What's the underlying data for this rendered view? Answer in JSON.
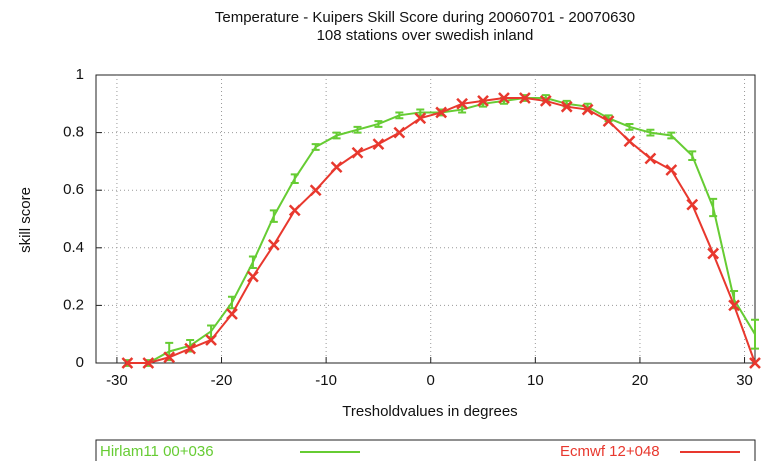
{
  "chart_data": {
    "type": "line",
    "title": "Temperature - Kuipers Skill Score during 20060701 - 20070630",
    "subtitle": "108 stations over swedish inland",
    "x_label": "Tresholdvalues in degrees",
    "y_label": "skill score",
    "x": [
      -29,
      -27,
      -25,
      -23,
      -21,
      -19,
      -17,
      -15,
      -13,
      -11,
      -9,
      -7,
      -5,
      -3,
      -1,
      1,
      3,
      5,
      7,
      9,
      11,
      13,
      15,
      17,
      19,
      21,
      23,
      25,
      27,
      29,
      31
    ],
    "series": [
      {
        "name": "Hirlam11 00+036",
        "color": "#66cc33",
        "values": [
          0,
          0,
          0.04,
          0.06,
          0.11,
          0.21,
          0.35,
          0.51,
          0.64,
          0.75,
          0.79,
          0.81,
          0.83,
          0.86,
          0.87,
          0.87,
          0.88,
          0.9,
          0.91,
          0.92,
          0.92,
          0.9,
          0.89,
          0.85,
          0.82,
          0.8,
          0.79,
          0.72,
          0.54,
          0.22,
          0.1
        ],
        "errors": [
          0.01,
          0.01,
          0.03,
          0.02,
          0.02,
          0.02,
          0.02,
          0.02,
          0.015,
          0.01,
          0.01,
          0.01,
          0.01,
          0.01,
          0.01,
          0.01,
          0.01,
          0.01,
          0.01,
          0.01,
          0.01,
          0.01,
          0.01,
          0.01,
          0.01,
          0.01,
          0.01,
          0.015,
          0.03,
          0.03,
          0.05
        ]
      },
      {
        "name": "Ecmwf 12+048",
        "color": "#e8382e",
        "values": [
          0,
          0,
          0.02,
          0.05,
          0.08,
          0.17,
          0.3,
          0.41,
          0.53,
          0.6,
          0.68,
          0.73,
          0.76,
          0.8,
          0.85,
          0.87,
          0.9,
          0.91,
          0.92,
          0.92,
          0.91,
          0.89,
          0.88,
          0.84,
          0.77,
          0.71,
          0.67,
          0.55,
          0.38,
          0.2,
          0
        ]
      }
    ],
    "xlim": [
      -32,
      31
    ],
    "ylim": [
      0,
      1
    ],
    "xticks": [
      -30,
      -20,
      -10,
      0,
      10,
      20,
      30
    ],
    "yticks": [
      0,
      0.2,
      0.4,
      0.6,
      0.8,
      1
    ],
    "grid": true
  }
}
